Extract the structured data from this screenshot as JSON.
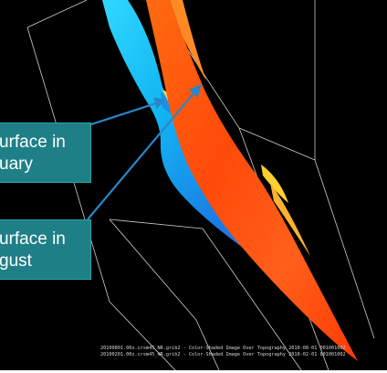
{
  "callouts": {
    "january": {
      "line1": "urface in",
      "line2": "uary"
    },
    "august": {
      "line1": "urface in",
      "line2": "gust"
    }
  },
  "footer": {
    "line1": "20100801.00z.crsm45_NR.grib2 - Color-Shaded Image Over Topography 2010-08-01 001001002",
    "line2": "20100201.00z.crsm45_NR.grib2 - Color-Shaded Image Over Topography 2010-02-01 001001002"
  },
  "colors": {
    "background": "#000000",
    "callout_fill": "#1f7f86",
    "arrow": "#2a86c9",
    "january_surface": "#1fa8f0",
    "august_surface": "#ff5a10",
    "bounding_box": "#d0d0d0"
  }
}
